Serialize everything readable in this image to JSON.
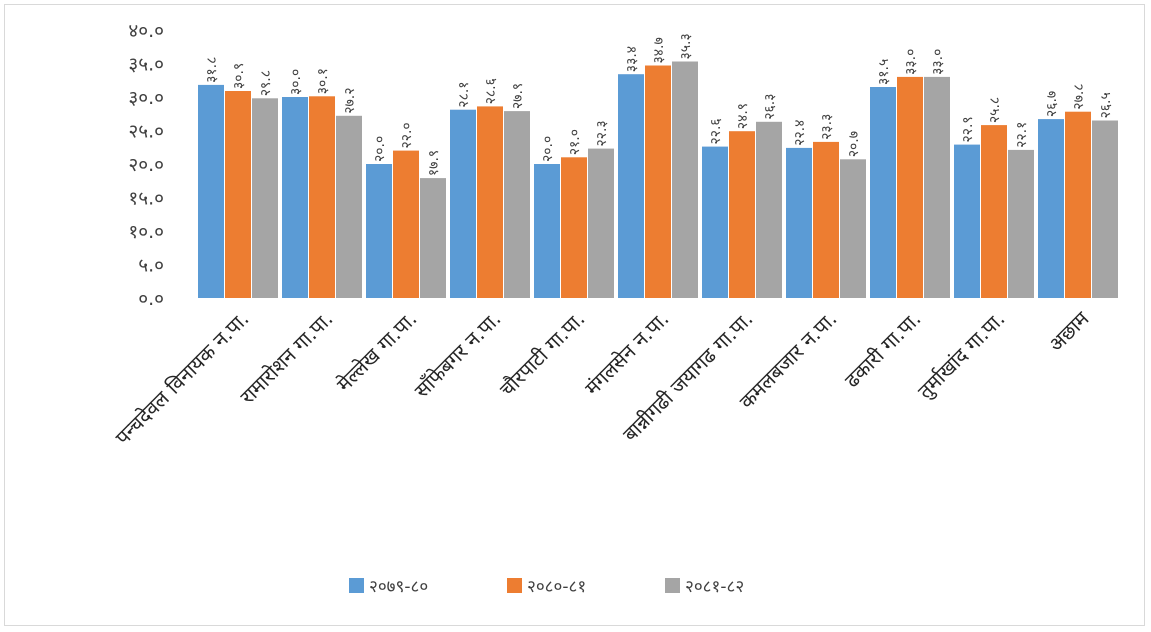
{
  "chart_data": {
    "type": "bar",
    "title": "",
    "xlabel": "",
    "ylabel": "",
    "ylim": [
      0,
      40
    ],
    "yticks": [
      0,
      5,
      10,
      15,
      20,
      25,
      30,
      35,
      40
    ],
    "ytick_labels": [
      "०.०",
      "५.०",
      "१०.०",
      "१५.०",
      "२०.०",
      "२५.०",
      "३०.०",
      "३५.०",
      "४०.०"
    ],
    "grid": false,
    "legend_position": "bottom",
    "categories": [
      "पन्चदेवल विनायक न.पा.",
      "रामारोशन गा.पा.",
      "मेल्लेख गा.पा.",
      "साँफेबगर न.पा.",
      "चौरपाटी गा.पा.",
      "मंगलसेन न.पा.",
      "बान्नीगढी जयागढ गा.पा.",
      "कमलबजार न.पा.",
      "ढकारी गा.पा.",
      "तुर्माखांद गा.पा.",
      "अछाम"
    ],
    "series": [
      {
        "name": "२०७९-८०",
        "color": "#5b9bd5",
        "values": [
          31.8,
          30.0,
          20.0,
          28.1,
          20.0,
          33.4,
          22.6,
          22.4,
          31.5,
          22.9,
          26.7
        ],
        "labels": [
          "३१.८",
          "३०.०",
          "२०.०",
          "२८.१",
          "२०.०",
          "३३.४",
          "२२.६",
          "२२.४",
          "३१.५",
          "२२.९",
          "२६.७"
        ]
      },
      {
        "name": "२०८०-८१",
        "color": "#ed7d31",
        "values": [
          30.9,
          30.1,
          22.0,
          28.6,
          21.0,
          34.7,
          24.9,
          23.3,
          33.0,
          25.8,
          27.8
        ],
        "labels": [
          "३०.९",
          "३०.१",
          "२२.०",
          "२८.६",
          "२१.०",
          "३४.७",
          "२४.९",
          "२३.३",
          "३३.०",
          "२५.८",
          "२७.८"
        ]
      },
      {
        "name": "२०८१-८२",
        "color": "#a5a5a5",
        "values": [
          29.8,
          27.2,
          17.9,
          27.9,
          22.3,
          35.3,
          26.3,
          20.7,
          33.0,
          22.1,
          26.5
        ],
        "labels": [
          "२९.८",
          "२७.२",
          "१७.९",
          "२७.९",
          "२२.३",
          "३५.३",
          "२६.३",
          "२०.७",
          "३३.०",
          "२२.१",
          "२६.५"
        ]
      }
    ]
  }
}
